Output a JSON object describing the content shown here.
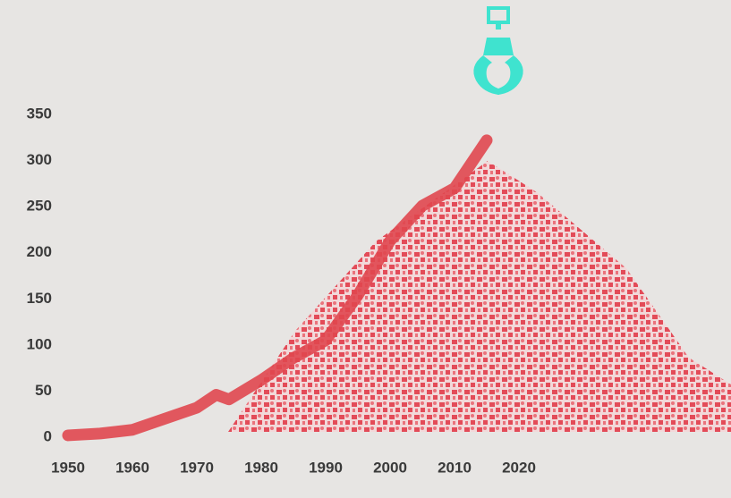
{
  "chart_data": {
    "type": "line",
    "x": [
      1950,
      1955,
      1960,
      1965,
      1970,
      1973,
      1975,
      1980,
      1985,
      1990,
      1995,
      2000,
      2005,
      2010,
      2015
    ],
    "series": [
      {
        "color": "#e0474f",
        "values": [
          2,
          4,
          8,
          20,
          32,
          46,
          41,
          62,
          86,
          105,
          154,
          213,
          251,
          270,
          322
        ]
      }
    ],
    "xlim": [
      1950,
      2020
    ],
    "xticks": [
      1950,
      1960,
      1970,
      1980,
      1990,
      2000,
      2010,
      2020
    ],
    "ylim": [
      0,
      350
    ],
    "yticks": [
      0,
      50,
      100,
      150,
      200,
      250,
      300,
      350
    ]
  }
}
